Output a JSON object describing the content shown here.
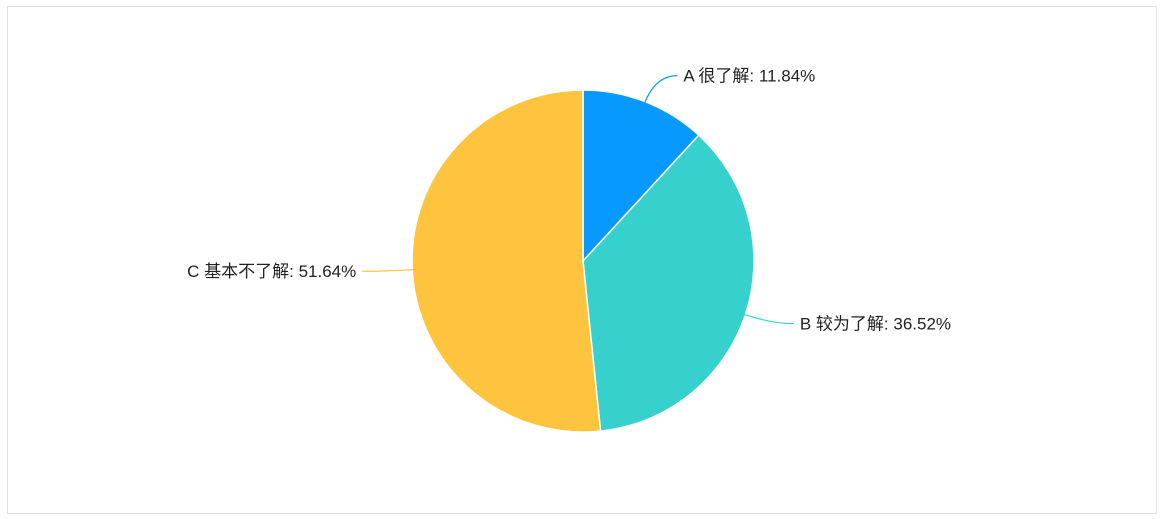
{
  "chart_data": {
    "type": "pie",
    "title": "",
    "slices": [
      {
        "label": "A 很了解: 11.84%",
        "value": 11.84,
        "color": "#0899ff"
      },
      {
        "label": "B 较为了解: 36.52%",
        "value": 36.52,
        "color": "#36d1cc"
      },
      {
        "label": "C 基本不了解: 51.64%",
        "value": 51.64,
        "color": "#ffc43d"
      }
    ],
    "start_angle": "12 o'clock",
    "direction": "clockwise",
    "legend": "none"
  }
}
